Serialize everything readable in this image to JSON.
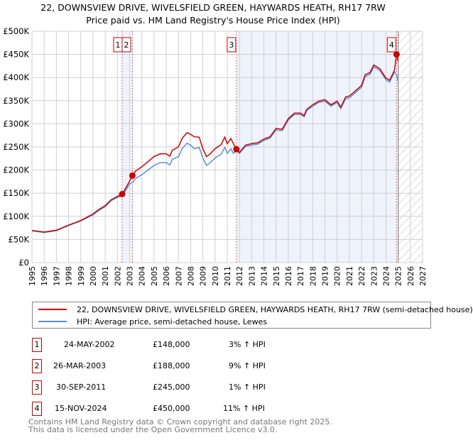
{
  "title_line1": "22, DOWNSVIEW DRIVE, WIVELSFIELD GREEN, HAYWARDS HEATH, RH17 7RW",
  "title_line2": "Price paid vs. HM Land Registry's House Price Index (HPI)",
  "colors": {
    "property": "#cc0000",
    "hpi": "#5b8fd4",
    "shade": "#eef3fc"
  },
  "chart_data": {
    "type": "line",
    "xlim": [
      1995,
      2027
    ],
    "ylim": [
      0,
      500000
    ],
    "x_ticks": [
      "1995",
      "1996",
      "1997",
      "1998",
      "1999",
      "2000",
      "2001",
      "2002",
      "2003",
      "2004",
      "2005",
      "2006",
      "2007",
      "2008",
      "2009",
      "2010",
      "2011",
      "2012",
      "2013",
      "2014",
      "2015",
      "2016",
      "2017",
      "2018",
      "2019",
      "2020",
      "2021",
      "2022",
      "2023",
      "2024",
      "2025",
      "2026",
      "2027"
    ],
    "y_ticks": [
      {
        "v": 0,
        "label": "£0"
      },
      {
        "v": 50000,
        "label": "£50K"
      },
      {
        "v": 100000,
        "label": "£100K"
      },
      {
        "v": 150000,
        "label": "£150K"
      },
      {
        "v": 200000,
        "label": "£200K"
      },
      {
        "v": 250000,
        "label": "£250K"
      },
      {
        "v": 300000,
        "label": "£300K"
      },
      {
        "v": 350000,
        "label": "£350K"
      },
      {
        "v": 400000,
        "label": "£400K"
      },
      {
        "v": 450000,
        "label": "£450K"
      },
      {
        "v": 500000,
        "label": "£500K"
      }
    ],
    "forecast_start": 2025.0,
    "series": [
      {
        "name": "22, DOWNSVIEW DRIVE, WIVELSFIELD GREEN, HAYWARDS HEATH, RH17 7RW (semi-detached house)",
        "color": "#cc0000",
        "x": [
          1995,
          1996,
          1997,
          1998,
          1999,
          2000,
          2000.5,
          2001,
          2001.5,
          2002,
          2002.4,
          2003,
          2003.23,
          2003.5,
          2004,
          2004.5,
          2005,
          2005.5,
          2006,
          2006.3,
          2006.5,
          2007,
          2007.3,
          2007.7,
          2008,
          2008.3,
          2008.7,
          2009,
          2009.3,
          2009.6,
          2010,
          2010.5,
          2010.8,
          2011,
          2011.3,
          2011.5,
          2011.75,
          2012,
          2012.5,
          2013,
          2013.5,
          2014,
          2014.5,
          2015,
          2015.5,
          2016,
          2016.5,
          2017,
          2017.3,
          2017.5,
          2018,
          2018.5,
          2019,
          2019.5,
          2020,
          2020.3,
          2020.7,
          2021,
          2021.5,
          2022,
          2022.3,
          2022.7,
          2023,
          2023.5,
          2024,
          2024.3,
          2024.7,
          2024.87,
          2025
        ],
        "y": [
          69500,
          66000,
          70000,
          81000,
          91000,
          105000,
          115000,
          123000,
          136000,
          143000,
          148000,
          176000,
          188000,
          198000,
          207000,
          218000,
          229000,
          235000,
          235000,
          230000,
          243000,
          250000,
          268000,
          281000,
          277000,
          272000,
          271000,
          246000,
          229000,
          235000,
          246000,
          255000,
          271000,
          257000,
          268000,
          257000,
          245000,
          238000,
          254000,
          257000,
          259000,
          267000,
          272000,
          290000,
          288000,
          311000,
          323000,
          323000,
          318000,
          331000,
          341000,
          349000,
          352000,
          341000,
          349000,
          336000,
          358000,
          360000,
          371000,
          383000,
          406000,
          411000,
          427000,
          419000,
          399000,
          394000,
          416000,
          450000,
          435000
        ]
      },
      {
        "name": "HPI: Average price, semi-detached house, Lewes",
        "color": "#5b8fd4",
        "x": [
          1995,
          1996,
          1997,
          1998,
          1999,
          2000,
          2000.5,
          2001,
          2001.5,
          2002,
          2002.4,
          2003,
          2003.23,
          2003.5,
          2004,
          2004.5,
          2005,
          2005.5,
          2006,
          2006.3,
          2006.5,
          2007,
          2007.3,
          2007.7,
          2008,
          2008.3,
          2008.7,
          2009,
          2009.3,
          2009.6,
          2010,
          2010.5,
          2010.8,
          2011,
          2011.3,
          2011.5,
          2011.75,
          2012,
          2012.5,
          2013,
          2013.5,
          2014,
          2014.5,
          2015,
          2015.5,
          2016,
          2016.5,
          2017,
          2017.3,
          2017.5,
          2018,
          2018.5,
          2019,
          2019.5,
          2020,
          2020.3,
          2020.7,
          2021,
          2021.5,
          2022,
          2022.3,
          2022.7,
          2023,
          2023.5,
          2024,
          2024.3,
          2024.7,
          2024.87,
          2025
        ],
        "y": [
          68500,
          65000,
          69000,
          80000,
          90000,
          103000,
          113000,
          121000,
          134000,
          141000,
          144000,
          170000,
          173000,
          182000,
          190000,
          200000,
          210000,
          216000,
          216000,
          211000,
          223000,
          229000,
          246000,
          258000,
          254000,
          246000,
          249000,
          226000,
          210000,
          216000,
          226000,
          234000,
          249000,
          236000,
          246000,
          236000,
          242000,
          236000,
          251000,
          254000,
          256000,
          264000,
          269000,
          287000,
          285000,
          308000,
          320000,
          320000,
          315000,
          328000,
          338000,
          346000,
          349000,
          338000,
          346000,
          333000,
          354000,
          356000,
          367000,
          379000,
          402000,
          407000,
          423000,
          415000,
          395000,
          390000,
          412000,
          405000,
          392000
        ]
      }
    ],
    "sales": [
      {
        "id": "1",
        "x": 2002.39,
        "price": 148000,
        "date": "24-MAY-2002",
        "price_label": "£148,000",
        "hpi_label": "3% ↑ HPI"
      },
      {
        "id": "2",
        "x": 2003.23,
        "price": 188000,
        "date": "26-MAR-2003",
        "price_label": "£188,000",
        "hpi_label": "9% ↑ HPI"
      },
      {
        "id": "3",
        "x": 2011.75,
        "price": 245000,
        "date": "30-SEP-2011",
        "price_label": "£245,000",
        "hpi_label": "1% ↑ HPI"
      },
      {
        "id": "4",
        "x": 2024.87,
        "price": 450000,
        "date": "15-NOV-2024",
        "price_label": "£450,000",
        "hpi_label": "11% ↑ HPI"
      }
    ]
  },
  "legend": {
    "property": "22, DOWNSVIEW DRIVE, WIVELSFIELD GREEN, HAYWARDS HEATH, RH17 7RW (semi-detached house)",
    "hpi": "HPI: Average price, semi-detached house, Lewes"
  },
  "footer": {
    "line1": "Contains HM Land Registry data © Crown copyright and database right 2025.",
    "line2": "This data is licensed under the Open Government Licence v3.0."
  }
}
